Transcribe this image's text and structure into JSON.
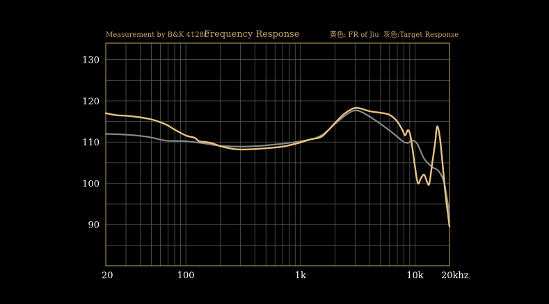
{
  "header": {
    "measurement": "Measurement by B&K 4128C",
    "title": "Frequency Response",
    "legend_fr": "黄色: FR of Jiu",
    "legend_target": "灰色:Target Response"
  },
  "colors": {
    "background": "#000000",
    "frame": "#c9a85c",
    "grid": "#5a5a5a",
    "fr_curve": "#e8c57a",
    "target_curve": "#8a8a8a",
    "tick_text": "#ffffff"
  },
  "chart_data": {
    "type": "line",
    "title": "Frequency Response",
    "x_scale": "log",
    "xlim": [
      20,
      20000
    ],
    "ylim": [
      80,
      134
    ],
    "x_ticks": [
      {
        "value": 20,
        "label": "20"
      },
      {
        "value": 100,
        "label": "100"
      },
      {
        "value": 1000,
        "label": "1k"
      },
      {
        "value": 10000,
        "label": "10k"
      },
      {
        "value": 20000,
        "label": "20khz"
      }
    ],
    "y_ticks": [
      {
        "value": 90,
        "label": "90"
      },
      {
        "value": 100,
        "label": "100"
      },
      {
        "value": 110,
        "label": "110"
      },
      {
        "value": 120,
        "label": "120"
      },
      {
        "value": 130,
        "label": "130"
      }
    ],
    "grid": true,
    "legend": "top-right",
    "series": [
      {
        "name": "Target Response",
        "color": "#8a8a8a",
        "points": [
          [
            20,
            112
          ],
          [
            30,
            111.8
          ],
          [
            40,
            111.5
          ],
          [
            50,
            111.1
          ],
          [
            60,
            110.6
          ],
          [
            70,
            110.3
          ],
          [
            100,
            110.2
          ],
          [
            150,
            109.6
          ],
          [
            200,
            109.1
          ],
          [
            300,
            108.9
          ],
          [
            400,
            109.0
          ],
          [
            500,
            109.2
          ],
          [
            700,
            109.6
          ],
          [
            1000,
            110.2
          ],
          [
            1300,
            110.8
          ],
          [
            1600,
            112.0
          ],
          [
            2000,
            114.4
          ],
          [
            2500,
            116.6
          ],
          [
            2900,
            117.6
          ],
          [
            3300,
            117.5
          ],
          [
            4000,
            116.2
          ],
          [
            5000,
            114.4
          ],
          [
            6000,
            112.8
          ],
          [
            7000,
            111.3
          ],
          [
            8000,
            110.0
          ],
          [
            8700,
            109.8
          ],
          [
            9500,
            110.4
          ],
          [
            10500,
            109.5
          ],
          [
            12000,
            106.0
          ],
          [
            14000,
            104.0
          ],
          [
            16000,
            103.0
          ],
          [
            18000,
            100.0
          ],
          [
            20000,
            92.5
          ]
        ]
      },
      {
        "name": "FR of Jiu",
        "color": "#e8c57a",
        "points": [
          [
            20,
            117
          ],
          [
            25,
            116.5
          ],
          [
            30,
            116.4
          ],
          [
            40,
            116.0
          ],
          [
            50,
            115.5
          ],
          [
            60,
            114.8
          ],
          [
            70,
            114.0
          ],
          [
            80,
            113.0
          ],
          [
            100,
            111.6
          ],
          [
            120,
            111.0
          ],
          [
            130,
            110.2
          ],
          [
            150,
            110.0
          ],
          [
            170,
            109.7
          ],
          [
            200,
            109.0
          ],
          [
            250,
            108.4
          ],
          [
            300,
            108.2
          ],
          [
            400,
            108.3
          ],
          [
            500,
            108.5
          ],
          [
            700,
            108.9
          ],
          [
            1000,
            109.9
          ],
          [
            1200,
            110.6
          ],
          [
            1500,
            111.2
          ],
          [
            1700,
            112.5
          ],
          [
            2000,
            114.6
          ],
          [
            2400,
            116.8
          ],
          [
            2800,
            118.0
          ],
          [
            3100,
            118.3
          ],
          [
            3500,
            118.0
          ],
          [
            4000,
            117.5
          ],
          [
            5000,
            117.1
          ],
          [
            6000,
            116.6
          ],
          [
            7000,
            115.0
          ],
          [
            7800,
            112.8
          ],
          [
            8200,
            111.6
          ],
          [
            8700,
            112.9
          ],
          [
            9200,
            111.0
          ],
          [
            10000,
            104.0
          ],
          [
            10600,
            100.0
          ],
          [
            11300,
            101.3
          ],
          [
            12000,
            102.1
          ],
          [
            12700,
            100.5
          ],
          [
            13300,
            99.8
          ],
          [
            14000,
            104.0
          ],
          [
            15000,
            110.0
          ],
          [
            15600,
            113.8
          ],
          [
            16500,
            111.0
          ],
          [
            17500,
            104.0
          ],
          [
            18500,
            97.0
          ],
          [
            19500,
            92.0
          ],
          [
            20000,
            89.5
          ]
        ]
      }
    ]
  }
}
